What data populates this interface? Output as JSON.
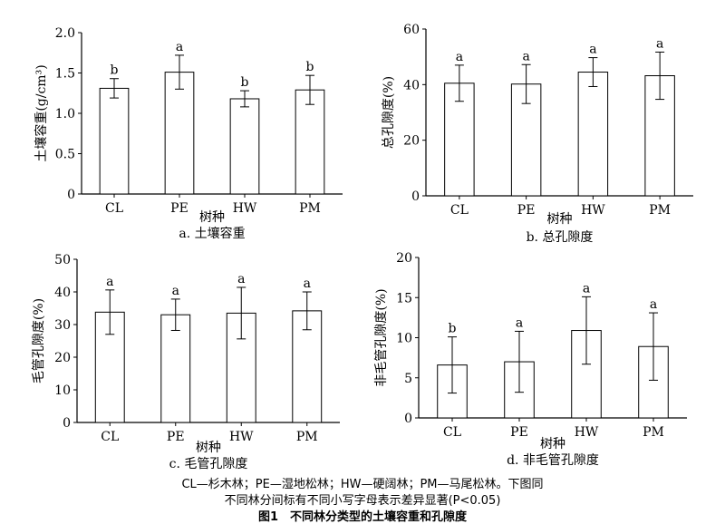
{
  "chart_data": [
    {
      "type": "bar",
      "panel_title": "a. 土壤容重",
      "xlabel": "树种",
      "ylabel": "土壤容重(g/cm³)",
      "categories": [
        "CL",
        "PE",
        "HW",
        "PM"
      ],
      "values": [
        1.31,
        1.51,
        1.18,
        1.29
      ],
      "errors": [
        0.12,
        0.21,
        0.1,
        0.18
      ],
      "letters": [
        "b",
        "a",
        "b",
        "b"
      ],
      "ylim": [
        0,
        2.0
      ],
      "yticks": [
        "0",
        "0.5",
        "1.0",
        "1.5",
        "2.0"
      ],
      "ytick_values": [
        0,
        0.5,
        1.0,
        1.5,
        2.0
      ],
      "grid": false
    },
    {
      "type": "bar",
      "panel_title": "b. 总孔隙度",
      "xlabel": "树种",
      "ylabel": "总孔隙度(%)",
      "categories": [
        "CL",
        "PE",
        "HW",
        "PM"
      ],
      "values": [
        40.5,
        40.2,
        44.5,
        43.2
      ],
      "errors": [
        6.5,
        7.0,
        5.2,
        8.5
      ],
      "letters": [
        "a",
        "a",
        "a",
        "a"
      ],
      "ylim": [
        0,
        60
      ],
      "yticks": [
        "0",
        "20",
        "40",
        "60"
      ],
      "ytick_values": [
        0,
        20,
        40,
        60
      ],
      "grid": false
    },
    {
      "type": "bar",
      "panel_title": "c. 毛管孔隙度",
      "xlabel": "树种",
      "ylabel": "毛管孔隙度(%)",
      "categories": [
        "CL",
        "PE",
        "HW",
        "PM"
      ],
      "values": [
        33.8,
        33.0,
        33.5,
        34.2
      ],
      "errors": [
        6.8,
        4.8,
        7.9,
        5.8
      ],
      "letters": [
        "a",
        "a",
        "a",
        "a"
      ],
      "ylim": [
        0,
        50
      ],
      "yticks": [
        "0",
        "10",
        "20",
        "30",
        "40",
        "50"
      ],
      "ytick_values": [
        0,
        10,
        20,
        30,
        40,
        50
      ],
      "grid": false
    },
    {
      "type": "bar",
      "panel_title": "d. 非毛管孔隙度",
      "xlabel": "树种",
      "ylabel": "非毛管孔隙度(%)",
      "categories": [
        "CL",
        "PE",
        "HW",
        "PM"
      ],
      "values": [
        6.6,
        7.0,
        10.9,
        8.9
      ],
      "errors": [
        3.5,
        3.8,
        4.2,
        4.2
      ],
      "letters": [
        "b",
        "a",
        "a",
        "a"
      ],
      "ylim": [
        0,
        20
      ],
      "yticks": [
        "0",
        "5",
        "10",
        "15",
        "20"
      ],
      "ytick_values": [
        0,
        5,
        10,
        15,
        20
      ],
      "grid": false
    }
  ],
  "caption": {
    "line1": "CL—杉木林；PE—湿地松林；HW—硬阔林；PM—马尾松林。下图同",
    "line2": "不同林分间标有不同小写字母表示差异显著(P<0.05)",
    "title": "图1　不同林分类型的土壤容重和孔隙度"
  }
}
